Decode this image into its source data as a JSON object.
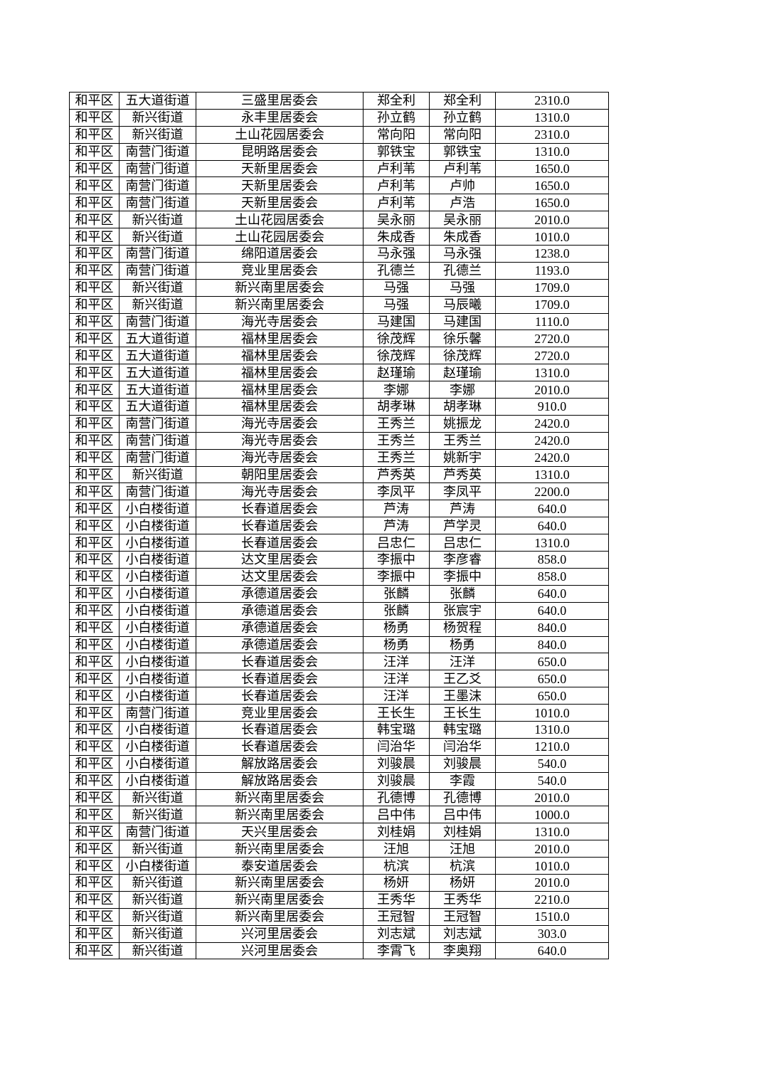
{
  "rows": [
    [
      "和平区",
      "五大道街道",
      "三盛里居委会",
      "郑全利",
      "郑全利",
      "2310.0"
    ],
    [
      "和平区",
      "新兴街道",
      "永丰里居委会",
      "孙立鹤",
      "孙立鹤",
      "1310.0"
    ],
    [
      "和平区",
      "新兴街道",
      "土山花园居委会",
      "常向阳",
      "常向阳",
      "2310.0"
    ],
    [
      "和平区",
      "南营门街道",
      "昆明路居委会",
      "郭铁宝",
      "郭铁宝",
      "1310.0"
    ],
    [
      "和平区",
      "南营门街道",
      "天新里居委会",
      "卢利苇",
      "卢利苇",
      "1650.0"
    ],
    [
      "和平区",
      "南营门街道",
      "天新里居委会",
      "卢利苇",
      "卢帅",
      "1650.0"
    ],
    [
      "和平区",
      "南营门街道",
      "天新里居委会",
      "卢利苇",
      "卢浩",
      "1650.0"
    ],
    [
      "和平区",
      "新兴街道",
      "土山花园居委会",
      "吴永丽",
      "吴永丽",
      "2010.0"
    ],
    [
      "和平区",
      "新兴街道",
      "土山花园居委会",
      "朱成香",
      "朱成香",
      "1010.0"
    ],
    [
      "和平区",
      "南营门街道",
      "绵阳道居委会",
      "马永强",
      "马永强",
      "1238.0"
    ],
    [
      "和平区",
      "南营门街道",
      "竞业里居委会",
      "孔德兰",
      "孔德兰",
      "1193.0"
    ],
    [
      "和平区",
      "新兴街道",
      "新兴南里居委会",
      "马强",
      "马强",
      "1709.0"
    ],
    [
      "和平区",
      "新兴街道",
      "新兴南里居委会",
      "马强",
      "马辰曦",
      "1709.0"
    ],
    [
      "和平区",
      "南营门街道",
      "海光寺居委会",
      "马建国",
      "马建国",
      "1110.0"
    ],
    [
      "和平区",
      "五大道街道",
      "福林里居委会",
      "徐茂辉",
      "徐乐馨",
      "2720.0"
    ],
    [
      "和平区",
      "五大道街道",
      "福林里居委会",
      "徐茂辉",
      "徐茂辉",
      "2720.0"
    ],
    [
      "和平区",
      "五大道街道",
      "福林里居委会",
      "赵瑾瑜",
      "赵瑾瑜",
      "1310.0"
    ],
    [
      "和平区",
      "五大道街道",
      "福林里居委会",
      "李娜",
      "李娜",
      "2010.0"
    ],
    [
      "和平区",
      "五大道街道",
      "福林里居委会",
      "胡孝琳",
      "胡孝琳",
      "910.0"
    ],
    [
      "和平区",
      "南营门街道",
      "海光寺居委会",
      "王秀兰",
      "姚振龙",
      "2420.0"
    ],
    [
      "和平区",
      "南营门街道",
      "海光寺居委会",
      "王秀兰",
      "王秀兰",
      "2420.0"
    ],
    [
      "和平区",
      "南营门街道",
      "海光寺居委会",
      "王秀兰",
      "姚新宇",
      "2420.0"
    ],
    [
      "和平区",
      "新兴街道",
      "朝阳里居委会",
      "芦秀英",
      "芦秀英",
      "1310.0"
    ],
    [
      "和平区",
      "南营门街道",
      "海光寺居委会",
      "李凤平",
      "李凤平",
      "2200.0"
    ],
    [
      "和平区",
      "小白楼街道",
      "长春道居委会",
      "芦涛",
      "芦涛",
      "640.0"
    ],
    [
      "和平区",
      "小白楼街道",
      "长春道居委会",
      "芦涛",
      "芦学灵",
      "640.0"
    ],
    [
      "和平区",
      "小白楼街道",
      "长春道居委会",
      "吕忠仁",
      "吕忠仁",
      "1310.0"
    ],
    [
      "和平区",
      "小白楼街道",
      "达文里居委会",
      "李振中",
      "李彦睿",
      "858.0"
    ],
    [
      "和平区",
      "小白楼街道",
      "达文里居委会",
      "李振中",
      "李振中",
      "858.0"
    ],
    [
      "和平区",
      "小白楼街道",
      "承德道居委会",
      "张麟",
      "张麟",
      "640.0"
    ],
    [
      "和平区",
      "小白楼街道",
      "承德道居委会",
      "张麟",
      "张宸宇",
      "640.0"
    ],
    [
      "和平区",
      "小白楼街道",
      "承德道居委会",
      "杨勇",
      "杨贺程",
      "840.0"
    ],
    [
      "和平区",
      "小白楼街道",
      "承德道居委会",
      "杨勇",
      "杨勇",
      "840.0"
    ],
    [
      "和平区",
      "小白楼街道",
      "长春道居委会",
      "汪洋",
      "汪洋",
      "650.0"
    ],
    [
      "和平区",
      "小白楼街道",
      "长春道居委会",
      "汪洋",
      "王乙爻",
      "650.0"
    ],
    [
      "和平区",
      "小白楼街道",
      "长春道居委会",
      "汪洋",
      "王墨沫",
      "650.0"
    ],
    [
      "和平区",
      "南营门街道",
      "竞业里居委会",
      "王长生",
      "王长生",
      "1010.0"
    ],
    [
      "和平区",
      "小白楼街道",
      "长春道居委会",
      "韩宝璐",
      "韩宝璐",
      "1310.0"
    ],
    [
      "和平区",
      "小白楼街道",
      "长春道居委会",
      "闫治华",
      "闫治华",
      "1210.0"
    ],
    [
      "和平区",
      "小白楼街道",
      "解放路居委会",
      "刘骏晨",
      "刘骏晨",
      "540.0"
    ],
    [
      "和平区",
      "小白楼街道",
      "解放路居委会",
      "刘骏晨",
      "李霞",
      "540.0"
    ],
    [
      "和平区",
      "新兴街道",
      "新兴南里居委会",
      "孔德博",
      "孔德博",
      "2010.0"
    ],
    [
      "和平区",
      "新兴街道",
      "新兴南里居委会",
      "吕中伟",
      "吕中伟",
      "1000.0"
    ],
    [
      "和平区",
      "南营门街道",
      "天兴里居委会",
      "刘桂娟",
      "刘桂娟",
      "1310.0"
    ],
    [
      "和平区",
      "新兴街道",
      "新兴南里居委会",
      "汪旭",
      "汪旭",
      "2010.0"
    ],
    [
      "和平区",
      "小白楼街道",
      "泰安道居委会",
      "杭滨",
      "杭滨",
      "1010.0"
    ],
    [
      "和平区",
      "新兴街道",
      "新兴南里居委会",
      "杨妍",
      "杨妍",
      "2010.0"
    ],
    [
      "和平区",
      "新兴街道",
      "新兴南里居委会",
      "王秀华",
      "王秀华",
      "2210.0"
    ],
    [
      "和平区",
      "新兴街道",
      "新兴南里居委会",
      "王冠智",
      "王冠智",
      "1510.0"
    ],
    [
      "和平区",
      "新兴街道",
      "兴河里居委会",
      "刘志斌",
      "刘志斌",
      "303.0"
    ],
    [
      "和平区",
      "新兴街道",
      "兴河里居委会",
      "李霄飞",
      "李奥翔",
      "640.0"
    ]
  ]
}
